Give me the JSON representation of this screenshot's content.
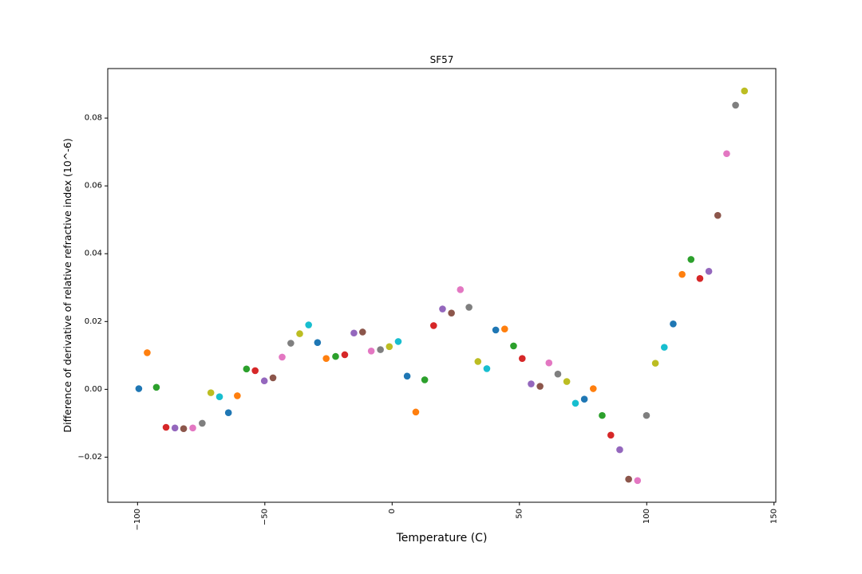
{
  "chart_data": {
    "type": "scatter",
    "title": "SF57",
    "xlabel": "Temperature (C)",
    "ylabel": "Difference of derivative of relative refractive index (10^-6)",
    "xlim": [
      -111.7,
      150.7
    ],
    "ylim": [
      -0.0333,
      0.0946
    ],
    "xticks": [
      -100,
      -50,
      0,
      50,
      100,
      150
    ],
    "xtick_labels": [
      "−100",
      "−50",
      "0",
      "50",
      "100",
      "150"
    ],
    "yticks": [
      -0.02,
      0.0,
      0.02,
      0.04,
      0.06,
      0.08
    ],
    "ytick_labels": [
      "−0.02",
      "0.00",
      "0.02",
      "0.04",
      "0.06",
      "0.08"
    ],
    "grid": false,
    "legend": false,
    "palette": [
      "#1f77b4",
      "#ff7f0e",
      "#2ca02c",
      "#d62728",
      "#9467bd",
      "#8c564b",
      "#e377c2",
      "#7f7f7f",
      "#bcbd22",
      "#17becf"
    ],
    "points": [
      {
        "x": -99.5,
        "y": 0.0002
      },
      {
        "x": -96.2,
        "y": 0.0108
      },
      {
        "x": -92.6,
        "y": 0.0006
      },
      {
        "x": -88.8,
        "y": -0.0112
      },
      {
        "x": -85.3,
        "y": -0.0114
      },
      {
        "x": -81.9,
        "y": -0.0116
      },
      {
        "x": -78.3,
        "y": -0.0114
      },
      {
        "x": -74.6,
        "y": -0.01
      },
      {
        "x": -71.2,
        "y": -0.001
      },
      {
        "x": -67.8,
        "y": -0.0022
      },
      {
        "x": -64.3,
        "y": -0.0069
      },
      {
        "x": -60.8,
        "y": -0.0019
      },
      {
        "x": -57.2,
        "y": 0.006
      },
      {
        "x": -53.8,
        "y": 0.0055
      },
      {
        "x": -50.2,
        "y": 0.0025
      },
      {
        "x": -46.8,
        "y": 0.0034
      },
      {
        "x": -43.2,
        "y": 0.0095
      },
      {
        "x": -39.8,
        "y": 0.0136
      },
      {
        "x": -36.3,
        "y": 0.0164
      },
      {
        "x": -32.8,
        "y": 0.019
      },
      {
        "x": -29.3,
        "y": 0.0138
      },
      {
        "x": -25.9,
        "y": 0.0091
      },
      {
        "x": -22.2,
        "y": 0.0097
      },
      {
        "x": -18.6,
        "y": 0.0102
      },
      {
        "x": -15.0,
        "y": 0.0166
      },
      {
        "x": -11.6,
        "y": 0.0169
      },
      {
        "x": -8.2,
        "y": 0.0113
      },
      {
        "x": -4.6,
        "y": 0.0117
      },
      {
        "x": -1.1,
        "y": 0.0126
      },
      {
        "x": 2.4,
        "y": 0.0141
      },
      {
        "x": 5.9,
        "y": 0.0039
      },
      {
        "x": 9.3,
        "y": -0.0067
      },
      {
        "x": 12.8,
        "y": 0.0028
      },
      {
        "x": 16.3,
        "y": 0.0188
      },
      {
        "x": 19.8,
        "y": 0.0237
      },
      {
        "x": 23.3,
        "y": 0.0225
      },
      {
        "x": 26.8,
        "y": 0.0294
      },
      {
        "x": 30.2,
        "y": 0.0242
      },
      {
        "x": 33.7,
        "y": 0.0082
      },
      {
        "x": 37.2,
        "y": 0.0061
      },
      {
        "x": 40.7,
        "y": 0.0175
      },
      {
        "x": 44.2,
        "y": 0.0178
      },
      {
        "x": 47.7,
        "y": 0.0128
      },
      {
        "x": 51.1,
        "y": 0.0091
      },
      {
        "x": 54.6,
        "y": 0.0016
      },
      {
        "x": 58.1,
        "y": 0.0009
      },
      {
        "x": 61.6,
        "y": 0.0078
      },
      {
        "x": 65.1,
        "y": 0.0045
      },
      {
        "x": 68.6,
        "y": 0.0023
      },
      {
        "x": 72.0,
        "y": -0.0041
      },
      {
        "x": 75.5,
        "y": -0.0029
      },
      {
        "x": 79.0,
        "y": 0.0002
      },
      {
        "x": 82.5,
        "y": -0.0077
      },
      {
        "x": 85.9,
        "y": -0.0135
      },
      {
        "x": 89.4,
        "y": -0.0178
      },
      {
        "x": 92.9,
        "y": -0.0265
      },
      {
        "x": 96.4,
        "y": -0.0269
      },
      {
        "x": 99.9,
        "y": -0.0077
      },
      {
        "x": 103.4,
        "y": 0.0077
      },
      {
        "x": 106.9,
        "y": 0.0124
      },
      {
        "x": 110.4,
        "y": 0.0193
      },
      {
        "x": 113.9,
        "y": 0.0339
      },
      {
        "x": 117.4,
        "y": 0.0383
      },
      {
        "x": 120.9,
        "y": 0.0327
      },
      {
        "x": 124.4,
        "y": 0.0348
      },
      {
        "x": 127.9,
        "y": 0.0513
      },
      {
        "x": 131.4,
        "y": 0.0695
      },
      {
        "x": 134.9,
        "y": 0.0838
      },
      {
        "x": 138.4,
        "y": 0.088
      }
    ]
  }
}
